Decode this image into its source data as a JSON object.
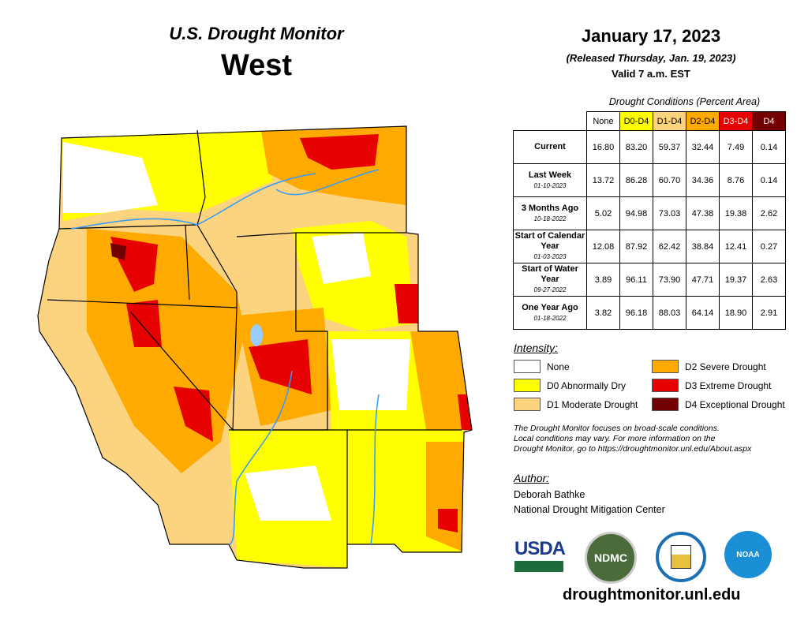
{
  "header": {
    "program": "U.S. Drought Monitor",
    "region": "West",
    "date": "January 17, 2023",
    "released": "(Released Thursday, Jan. 19, 2023)",
    "valid": "Valid 7 a.m. EST"
  },
  "table": {
    "caption": "Drought Conditions (Percent Area)",
    "columns": [
      "None",
      "D0-D4",
      "D1-D4",
      "D2-D4",
      "D3-D4",
      "D4"
    ],
    "rows": [
      {
        "label": "Current",
        "date": "",
        "values": [
          "16.80",
          "83.20",
          "59.37",
          "32.44",
          "7.49",
          "0.14"
        ]
      },
      {
        "label": "Last Week",
        "date": "01-10-2023",
        "values": [
          "13.72",
          "86.28",
          "60.70",
          "34.36",
          "8.76",
          "0.14"
        ]
      },
      {
        "label": "3 Months Ago",
        "date": "10-18-2022",
        "values": [
          "5.02",
          "94.98",
          "73.03",
          "47.38",
          "19.38",
          "2.62"
        ]
      },
      {
        "label": "Start of Calendar Year",
        "date": "01-03-2023",
        "values": [
          "12.08",
          "87.92",
          "62.42",
          "38.84",
          "12.41",
          "0.27"
        ]
      },
      {
        "label": "Start of Water Year",
        "date": "09-27-2022",
        "values": [
          "3.89",
          "96.11",
          "73.90",
          "47.71",
          "19.37",
          "2.63"
        ]
      },
      {
        "label": "One Year Ago",
        "date": "01-18-2022",
        "values": [
          "3.82",
          "96.18",
          "88.03",
          "64.14",
          "18.90",
          "2.91"
        ]
      }
    ]
  },
  "legend": {
    "title": "Intensity:",
    "items": [
      {
        "label": "None",
        "color": "#ffffff"
      },
      {
        "label": "D0 Abnormally Dry",
        "color": "#ffff00"
      },
      {
        "label": "D1 Moderate Drought",
        "color": "#fcd37f"
      },
      {
        "label": "D2 Severe Drought",
        "color": "#ffaa00"
      },
      {
        "label": "D3 Extreme Drought",
        "color": "#e60000"
      },
      {
        "label": "D4 Exceptional Drought",
        "color": "#730000"
      }
    ]
  },
  "note": [
    "The Drought Monitor focuses on broad-scale conditions.",
    "Local conditions may vary. For more information on the",
    "Drought Monitor, go to https://droughtmonitor.unl.edu/About.aspx"
  ],
  "author": {
    "title": "Author:",
    "name": "Deborah Bathke",
    "org": "National Drought Mitigation Center"
  },
  "logos": {
    "usda": "USDA",
    "ndmc": "NDMC",
    "noaa": "NOAA"
  },
  "footer": {
    "url": "droughtmonitor.unl.edu"
  }
}
